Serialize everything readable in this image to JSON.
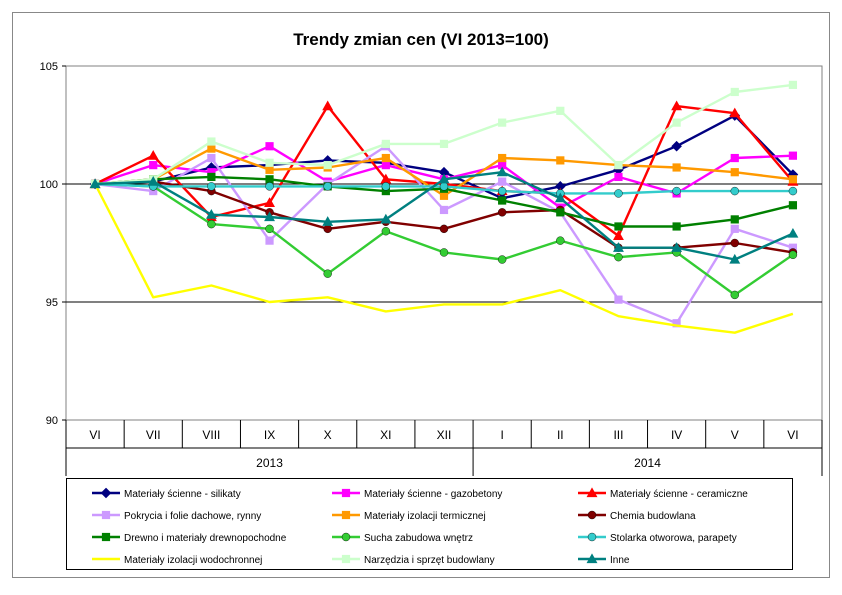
{
  "chart_data": {
    "type": "line",
    "title": "Trendy zmian cen (VI 2013=100)",
    "xlabel": "",
    "ylabel": "",
    "ylim": [
      90,
      105
    ],
    "yticks": [
      90,
      95,
      100,
      105
    ],
    "grid": "horizontal at 95, 100, 105",
    "legend_position": "bottom",
    "categories": [
      "VI",
      "VII",
      "VIII",
      "IX",
      "X",
      "XI",
      "XII",
      "I",
      "II",
      "III",
      "IV",
      "V",
      "VI"
    ],
    "year_groups": [
      {
        "label": "2013",
        "start": 0,
        "end": 6
      },
      {
        "label": "2014",
        "start": 7,
        "end": 12
      }
    ],
    "series": [
      {
        "name": "Materiały ścienne - silikaty",
        "color": "#000080",
        "marker": "diamond",
        "values": [
          100,
          100.1,
          100.7,
          100.8,
          101.0,
          100.9,
          100.5,
          99.4,
          99.9,
          100.6,
          101.6,
          102.9,
          100.4
        ]
      },
      {
        "name": "Materiały ścienne - gazobetony",
        "color": "#ff00ff",
        "marker": "square",
        "values": [
          100,
          100.8,
          100.5,
          101.6,
          100.1,
          100.8,
          100.2,
          100.8,
          99.0,
          100.3,
          99.6,
          101.1,
          101.2
        ]
      },
      {
        "name": "Materiały ścienne - ceramiczne",
        "color": "#ff0000",
        "marker": "triangle",
        "values": [
          100,
          101.2,
          98.6,
          99.2,
          103.3,
          100.2,
          100.0,
          99.7,
          99.6,
          97.8,
          103.3,
          103.0,
          100.1
        ]
      },
      {
        "name": "Pokrycia i folie dachowe, rynny",
        "color": "#cc99ff",
        "marker": "square",
        "values": [
          100,
          99.7,
          101.1,
          97.6,
          100.0,
          101.6,
          98.9,
          100.1,
          98.8,
          95.1,
          94.1,
          98.1,
          97.3
        ]
      },
      {
        "name": "Materiały izolacji termicznej",
        "color": "#ff9900",
        "marker": "square",
        "values": [
          100,
          100.2,
          101.5,
          100.6,
          100.7,
          101.1,
          99.5,
          101.1,
          101.0,
          100.8,
          100.7,
          100.5,
          100.2
        ]
      },
      {
        "name": "Chemia budowlana",
        "color": "#800000",
        "marker": "circle",
        "values": [
          100,
          100.1,
          99.7,
          98.8,
          98.1,
          98.4,
          98.1,
          98.8,
          98.9,
          97.3,
          97.3,
          97.5,
          97.1
        ]
      },
      {
        "name": "Drewno i materiały drewnopochodne",
        "color": "#008000",
        "marker": "square",
        "values": [
          100,
          100.2,
          100.3,
          100.2,
          99.9,
          99.7,
          99.8,
          99.3,
          98.8,
          98.2,
          98.2,
          98.5,
          99.1
        ]
      },
      {
        "name": "Sucha zabudowa wnętrz",
        "color": "#33cc33",
        "marker": "circle",
        "values": [
          100,
          99.9,
          98.3,
          98.1,
          96.2,
          98.0,
          97.1,
          96.8,
          97.6,
          96.9,
          97.1,
          95.3,
          97.0
        ]
      },
      {
        "name": "Stolarka otworowa, parapety",
        "color": "#33cccc",
        "marker": "circle",
        "values": [
          100,
          99.9,
          99.9,
          99.9,
          99.9,
          99.9,
          99.9,
          99.7,
          99.6,
          99.6,
          99.7,
          99.7,
          99.7
        ]
      },
      {
        "name": "Materiały izolacji wodochronnej",
        "color": "#ffff00",
        "marker": "none",
        "values": [
          100,
          95.2,
          95.7,
          95.0,
          95.2,
          94.6,
          94.9,
          94.9,
          95.5,
          94.4,
          94.0,
          93.7,
          94.5
        ]
      },
      {
        "name": "Narzędzia i sprzęt budowlany",
        "color": "#ccffcc",
        "marker": "square",
        "values": [
          100,
          100.2,
          101.8,
          100.9,
          100.8,
          101.7,
          101.7,
          102.6,
          103.1,
          100.8,
          102.6,
          103.9,
          104.2
        ]
      },
      {
        "name": "Inne",
        "color": "#008080",
        "marker": "triangle",
        "values": [
          100,
          100.1,
          98.7,
          98.6,
          98.4,
          98.5,
          100.2,
          100.5,
          99.4,
          97.3,
          97.3,
          96.8,
          97.9
        ]
      }
    ]
  }
}
